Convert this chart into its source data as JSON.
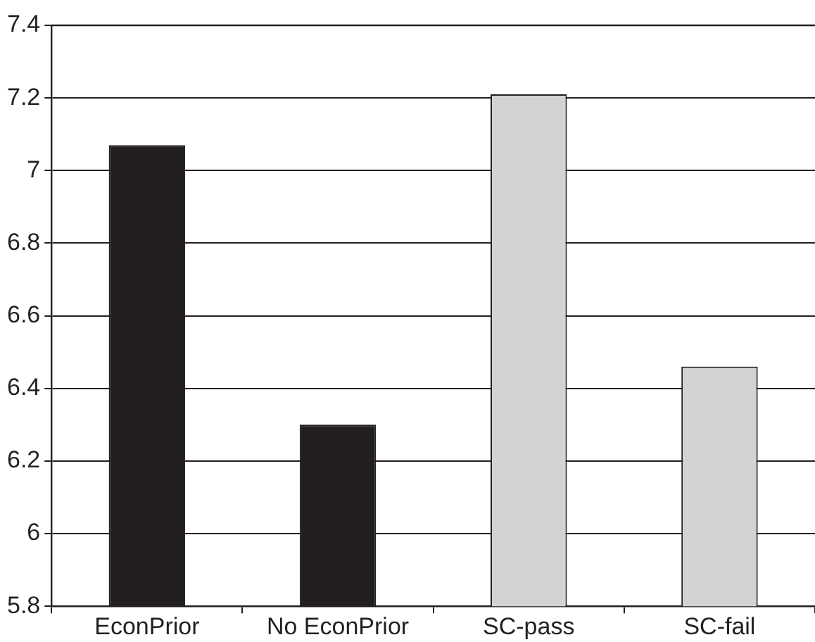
{
  "chart_data": {
    "type": "bar",
    "categories": [
      "EconPrior",
      "No EconPrior",
      "SC-pass",
      "SC-fail"
    ],
    "values": [
      7.07,
      6.3,
      7.21,
      6.46
    ],
    "colors": [
      "#231f20",
      "#231f20",
      "#d1d3d4",
      "#d1d3d4"
    ],
    "ylim": [
      5.8,
      7.4
    ],
    "yticks": [
      5.8,
      6,
      6.2,
      6.4,
      6.6,
      6.8,
      7,
      7.2,
      7.4
    ],
    "grid": "y",
    "legend": false
  }
}
